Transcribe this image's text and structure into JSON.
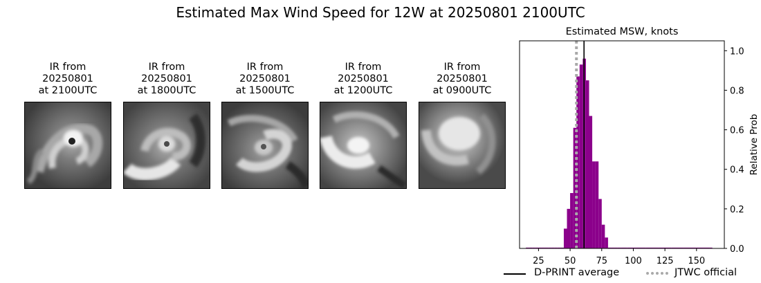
{
  "page": {
    "title": "Estimated Max Wind Speed for 12W at 20250801 2100UTC"
  },
  "panels": [
    {
      "line1": "IR from",
      "line2": "20250801",
      "line3": "at 2100UTC"
    },
    {
      "line1": "IR from",
      "line2": "20250801",
      "line3": "at 1800UTC"
    },
    {
      "line1": "IR from",
      "line2": "20250801",
      "line3": "at 1500UTC"
    },
    {
      "line1": "IR from",
      "line2": "20250801",
      "line3": "at 1200UTC"
    },
    {
      "line1": "IR from",
      "line2": "20250801",
      "line3": "at 0900UTC"
    }
  ],
  "colors": {
    "bars": "#8b008b",
    "dprint_line": "#000000",
    "jtwc_line": "#a9a9a9"
  },
  "chart_data": {
    "type": "bar",
    "title": "Estimated MSW, knots",
    "ylabel": "Relative Prob",
    "xlim": [
      10,
      172
    ],
    "ylim": [
      0,
      1.05
    ],
    "xticks": [
      25,
      50,
      75,
      100,
      125,
      150
    ],
    "yticks": [
      0.0,
      0.2,
      0.4,
      0.6,
      0.8,
      1.0
    ],
    "ytick_labels": [
      "0.0",
      "0.2",
      "0.4",
      "0.6",
      "0.8",
      "1.0"
    ],
    "y_axis_side": "right",
    "bin_width": 2.5,
    "bins": [
      {
        "start": 15.0,
        "value": 0.004
      },
      {
        "start": 17.5,
        "value": 0.004
      },
      {
        "start": 20.0,
        "value": 0.004
      },
      {
        "start": 22.5,
        "value": 0.004
      },
      {
        "start": 25.0,
        "value": 0.004
      },
      {
        "start": 27.5,
        "value": 0.004
      },
      {
        "start": 30.0,
        "value": 0.004
      },
      {
        "start": 32.5,
        "value": 0.004
      },
      {
        "start": 35.0,
        "value": 0.004
      },
      {
        "start": 37.5,
        "value": 0.004
      },
      {
        "start": 40.0,
        "value": 0.004
      },
      {
        "start": 42.5,
        "value": 0.004
      },
      {
        "start": 45.0,
        "value": 0.1
      },
      {
        "start": 47.5,
        "value": 0.2
      },
      {
        "start": 50.0,
        "value": 0.28
      },
      {
        "start": 52.5,
        "value": 0.61
      },
      {
        "start": 55.0,
        "value": 0.87
      },
      {
        "start": 57.5,
        "value": 0.93
      },
      {
        "start": 60.0,
        "value": 0.96
      },
      {
        "start": 62.5,
        "value": 0.85
      },
      {
        "start": 65.0,
        "value": 0.67
      },
      {
        "start": 67.5,
        "value": 0.44
      },
      {
        "start": 70.0,
        "value": 0.44
      },
      {
        "start": 72.5,
        "value": 0.25
      },
      {
        "start": 75.0,
        "value": 0.12
      },
      {
        "start": 77.5,
        "value": 0.055
      },
      {
        "start": 80.0,
        "value": 0.004
      },
      {
        "start": 82.5,
        "value": 0.004
      },
      {
        "start": 85.0,
        "value": 0.004
      },
      {
        "start": 87.5,
        "value": 0.004
      },
      {
        "start": 90.0,
        "value": 0.004
      },
      {
        "start": 95.0,
        "value": 0.004
      },
      {
        "start": 100.0,
        "value": 0.004
      },
      {
        "start": 110.0,
        "value": 0.004
      },
      {
        "start": 120.0,
        "value": 0.004
      },
      {
        "start": 130.0,
        "value": 0.004
      },
      {
        "start": 140.0,
        "value": 0.004
      },
      {
        "start": 150.0,
        "value": 0.004
      },
      {
        "start": 160.0,
        "value": 0.004
      }
    ],
    "dprint_average": 61,
    "jtwc_official": 55,
    "legend": [
      {
        "label": "D-PRINT average",
        "style": "solid"
      },
      {
        "label": "JTWC official",
        "style": "dotted"
      }
    ],
    "legend_placement": "bottom-right"
  }
}
